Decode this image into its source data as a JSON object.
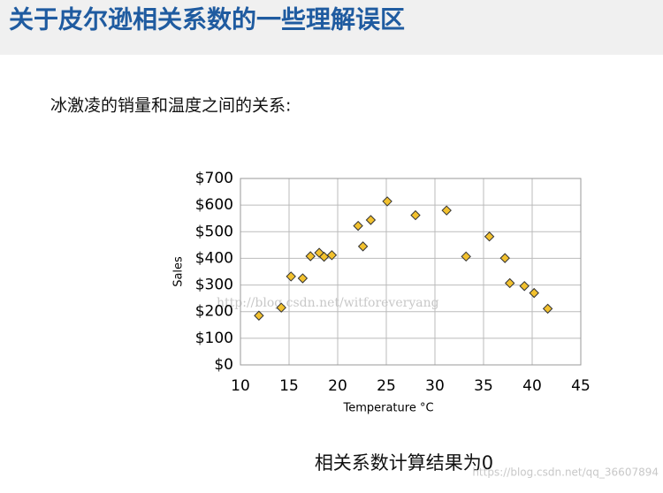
{
  "header": {
    "title": "关于皮尔逊相关系数的一些理解误区"
  },
  "subtitle": "冰激凌的销量和温度之间的关系:",
  "chart_data": {
    "type": "scatter",
    "x_label": "Temperature °C",
    "y_label": "Sales",
    "x": [
      11.9,
      14.2,
      15.2,
      16.4,
      17.2,
      18.1,
      18.6,
      19.4,
      22.1,
      22.6,
      23.4,
      25.1,
      28.0,
      31.2,
      33.2,
      35.6,
      37.2,
      37.7,
      39.2,
      40.2,
      41.6
    ],
    "values": [
      185,
      215,
      332,
      325,
      408,
      421,
      406,
      412,
      522,
      445,
      544,
      614,
      562,
      580,
      407,
      482,
      401,
      307,
      296,
      270,
      211
    ],
    "color": "#f2c12e",
    "xlim": [
      10,
      45
    ],
    "xticks": [
      10,
      15,
      20,
      25,
      30,
      35,
      40,
      45
    ],
    "ylim": [
      0,
      700
    ],
    "yticks": [
      {
        "value": 0,
        "label": "$0"
      },
      {
        "value": 100,
        "label": "$100"
      },
      {
        "value": 200,
        "label": "$200"
      },
      {
        "value": 300,
        "label": "$300"
      },
      {
        "value": 400,
        "label": "$400"
      },
      {
        "value": 500,
        "label": "$500"
      },
      {
        "value": 600,
        "label": "$600"
      },
      {
        "value": 700,
        "label": "$700"
      }
    ],
    "grid": true
  },
  "caption": "相关系数计算结果为0",
  "watermarks": [
    "http://blog.csdn.net/witforeveryang",
    "https://blog.csdn.net/qq_36607894"
  ]
}
